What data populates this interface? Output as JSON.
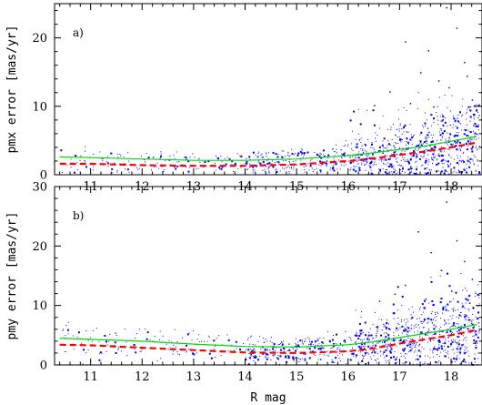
{
  "chart_data": [
    {
      "type": "scatter",
      "panel_label": "a)",
      "title": "",
      "xlabel": "",
      "ylabel": "pmx error [mas/yr]",
      "xlim": [
        10.3,
        18.6
      ],
      "ylim": [
        0,
        25
      ],
      "xticks": [
        11,
        12,
        13,
        14,
        15,
        16,
        17,
        18
      ],
      "yticks": [
        0,
        10,
        20
      ],
      "point_color": "#0000ee",
      "series": [
        {
          "kind": "line",
          "color": "#00dd00",
          "x": [
            10.4,
            11,
            12,
            13,
            14,
            15,
            16,
            16.5,
            17,
            17.5,
            18,
            18.5
          ],
          "y": [
            2.6,
            2.5,
            2.3,
            2.1,
            2.1,
            2.3,
            2.8,
            3.2,
            3.7,
            4.2,
            4.9,
            5.6
          ]
        },
        {
          "kind": "dashed-line",
          "color": "#ff0000",
          "x": [
            10.4,
            11,
            12,
            13,
            14,
            15,
            16,
            16.5,
            17,
            17.5,
            18,
            18.5
          ],
          "y": [
            1.6,
            1.6,
            1.4,
            1.3,
            1.3,
            1.5,
            2.0,
            2.4,
            2.9,
            3.4,
            4.0,
            4.7
          ]
        }
      ],
      "scatter_outliers": [
        {
          "x": 17.1,
          "y": 19.5
        },
        {
          "x": 17.55,
          "y": 18.2
        },
        {
          "x": 17.9,
          "y": 24.5
        },
        {
          "x": 18.1,
          "y": 21.5
        },
        {
          "x": 17.4,
          "y": 15.0
        },
        {
          "x": 18.25,
          "y": 16.5
        },
        {
          "x": 17.75,
          "y": 13.8
        },
        {
          "x": 18.3,
          "y": 14.5
        },
        {
          "x": 16.8,
          "y": 12.2
        },
        {
          "x": 17.95,
          "y": 12.8
        },
        {
          "x": 18.4,
          "y": 11.0
        },
        {
          "x": 17.2,
          "y": 10.5
        },
        {
          "x": 16.5,
          "y": 10.2
        },
        {
          "x": 17.65,
          "y": 10.0
        }
      ],
      "scatter_density": {
        "x_start": 10.4,
        "x_end": 18.55,
        "mean_x": 16.7
      }
    },
    {
      "type": "scatter",
      "panel_label": "b)",
      "title": "",
      "xlabel": "R mag",
      "ylabel": "pmy error [mas/yr]",
      "xlim": [
        10.3,
        18.6
      ],
      "ylim": [
        0,
        30
      ],
      "xticks": [
        11,
        12,
        13,
        14,
        15,
        16,
        17,
        18
      ],
      "yticks": [
        0,
        10,
        20,
        30
      ],
      "point_color": "#0000ee",
      "series": [
        {
          "kind": "line",
          "color": "#00dd00",
          "x": [
            10.4,
            11,
            12,
            13,
            14,
            15,
            16,
            16.5,
            17,
            17.5,
            18,
            18.5
          ],
          "y": [
            4.5,
            4.3,
            4.0,
            3.5,
            3.1,
            3.0,
            3.4,
            3.9,
            4.6,
            5.3,
            6.0,
            6.8
          ]
        },
        {
          "kind": "dashed-line",
          "color": "#ff0000",
          "x": [
            10.4,
            11,
            12,
            13,
            14,
            15,
            16,
            16.5,
            17,
            17.5,
            18,
            18.5
          ],
          "y": [
            3.4,
            3.3,
            2.9,
            2.5,
            2.1,
            2.0,
            2.3,
            2.8,
            3.6,
            4.3,
            5.0,
            5.9
          ]
        }
      ],
      "scatter_outliers": [
        {
          "x": 17.9,
          "y": 27.5
        },
        {
          "x": 17.35,
          "y": 22.5
        },
        {
          "x": 18.1,
          "y": 21.0
        },
        {
          "x": 17.6,
          "y": 19.0
        },
        {
          "x": 18.25,
          "y": 17.5
        },
        {
          "x": 17.8,
          "y": 16.0
        },
        {
          "x": 18.4,
          "y": 14.5
        },
        {
          "x": 17.1,
          "y": 13.5
        },
        {
          "x": 16.9,
          "y": 12.0
        },
        {
          "x": 18.0,
          "y": 12.5
        },
        {
          "x": 17.5,
          "y": 11.2
        },
        {
          "x": 16.6,
          "y": 10.8
        },
        {
          "x": 18.35,
          "y": 10.5
        }
      ],
      "scatter_density": {
        "x_start": 10.4,
        "x_end": 18.55,
        "mean_x": 16.7
      }
    }
  ]
}
